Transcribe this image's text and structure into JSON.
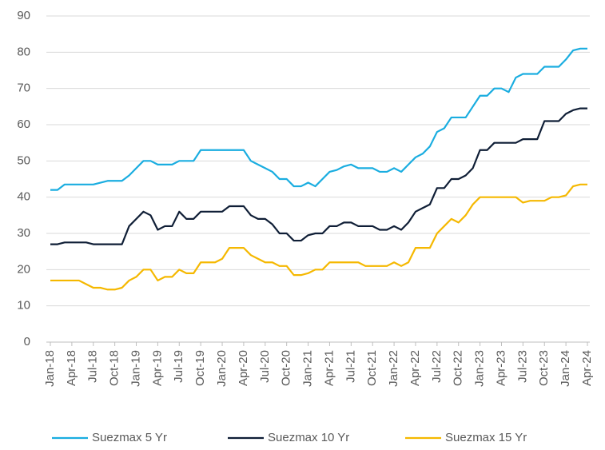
{
  "chart_data": {
    "type": "line",
    "categories": [
      "Jan-18",
      null,
      null,
      "Apr-18",
      null,
      null,
      "Jul-18",
      null,
      null,
      "Oct-18",
      null,
      null,
      "Jan-19",
      null,
      null,
      "Apr-19",
      null,
      null,
      "Jul-19",
      null,
      null,
      "Oct-19",
      null,
      null,
      "Jan-20",
      null,
      null,
      "Apr-20",
      null,
      null,
      "Jul-20",
      null,
      null,
      "Oct-20",
      null,
      null,
      "Jan-21",
      null,
      null,
      "Apr-21",
      null,
      null,
      "Jul-21",
      null,
      null,
      "Oct-21",
      null,
      null,
      "Jan-22",
      null,
      null,
      "Apr-22",
      null,
      null,
      "Jul-22",
      null,
      null,
      "Oct-22",
      null,
      null,
      "Jan-23",
      null,
      null,
      "Apr-23",
      null,
      null,
      "Jul-23",
      null,
      null,
      "Oct-23",
      null,
      null,
      "Jan-24",
      null,
      null,
      "Apr-24"
    ],
    "series": [
      {
        "name": "Suezmax 5 Yr",
        "color": "#1aade0",
        "values": [
          42,
          42,
          43.5,
          43.5,
          43.5,
          43.5,
          43.5,
          44,
          44.5,
          44.5,
          44.5,
          46,
          48,
          50,
          50,
          49,
          49,
          49,
          50,
          50,
          50,
          53,
          53,
          53,
          53,
          53,
          53,
          53,
          50,
          49,
          48,
          47,
          45,
          45,
          43,
          43,
          44,
          43,
          45,
          47,
          47.5,
          48.5,
          49,
          48,
          48,
          48,
          47,
          47,
          48,
          47,
          49,
          51,
          52,
          54,
          58,
          59,
          62,
          62,
          62,
          65,
          68,
          68,
          70,
          70,
          69,
          73,
          74,
          74,
          74,
          76,
          76,
          76,
          78,
          80.5,
          81,
          81
        ]
      },
      {
        "name": "Suezmax 10 Yr",
        "color": "#0f1e36",
        "values": [
          27,
          27,
          27.5,
          27.5,
          27.5,
          27.5,
          27,
          27,
          27,
          27,
          27,
          32,
          34,
          36,
          35,
          31,
          32,
          32,
          36,
          34,
          34,
          36,
          36,
          36,
          36,
          37.5,
          37.5,
          37.5,
          35,
          34,
          34,
          32.5,
          30,
          30,
          28,
          28,
          29.5,
          30,
          30,
          32,
          32,
          33,
          33,
          32,
          32,
          32,
          31,
          31,
          32,
          31,
          33,
          36,
          37,
          38,
          42.5,
          42.5,
          45,
          45,
          46,
          48,
          53,
          53,
          55,
          55,
          55,
          55,
          56,
          56,
          56,
          61,
          61,
          61,
          63,
          64,
          64.5,
          64.5
        ]
      },
      {
        "name": "Suezmax 15 Yr",
        "color": "#f5b800",
        "values": [
          17,
          17,
          17,
          17,
          17,
          16,
          15,
          15,
          14.5,
          14.5,
          15,
          17,
          18,
          20,
          20,
          17,
          18,
          18,
          20,
          19,
          19,
          22,
          22,
          22,
          23,
          26,
          26,
          26,
          24,
          23,
          22,
          22,
          21,
          21,
          18.5,
          18.5,
          19,
          20,
          20,
          22,
          22,
          22,
          22,
          22,
          21,
          21,
          21,
          21,
          22,
          21,
          22,
          26,
          26,
          26,
          30,
          32,
          34,
          33,
          35,
          38,
          40,
          40,
          40,
          40,
          40,
          40,
          38.5,
          39,
          39,
          39,
          40,
          40,
          40.5,
          43,
          43.5,
          43.5
        ]
      }
    ],
    "ylim": [
      0,
      90
    ],
    "yticks": [
      0,
      10,
      20,
      30,
      40,
      50,
      60,
      70,
      80,
      90
    ],
    "grid": true,
    "legend": "bottom"
  }
}
